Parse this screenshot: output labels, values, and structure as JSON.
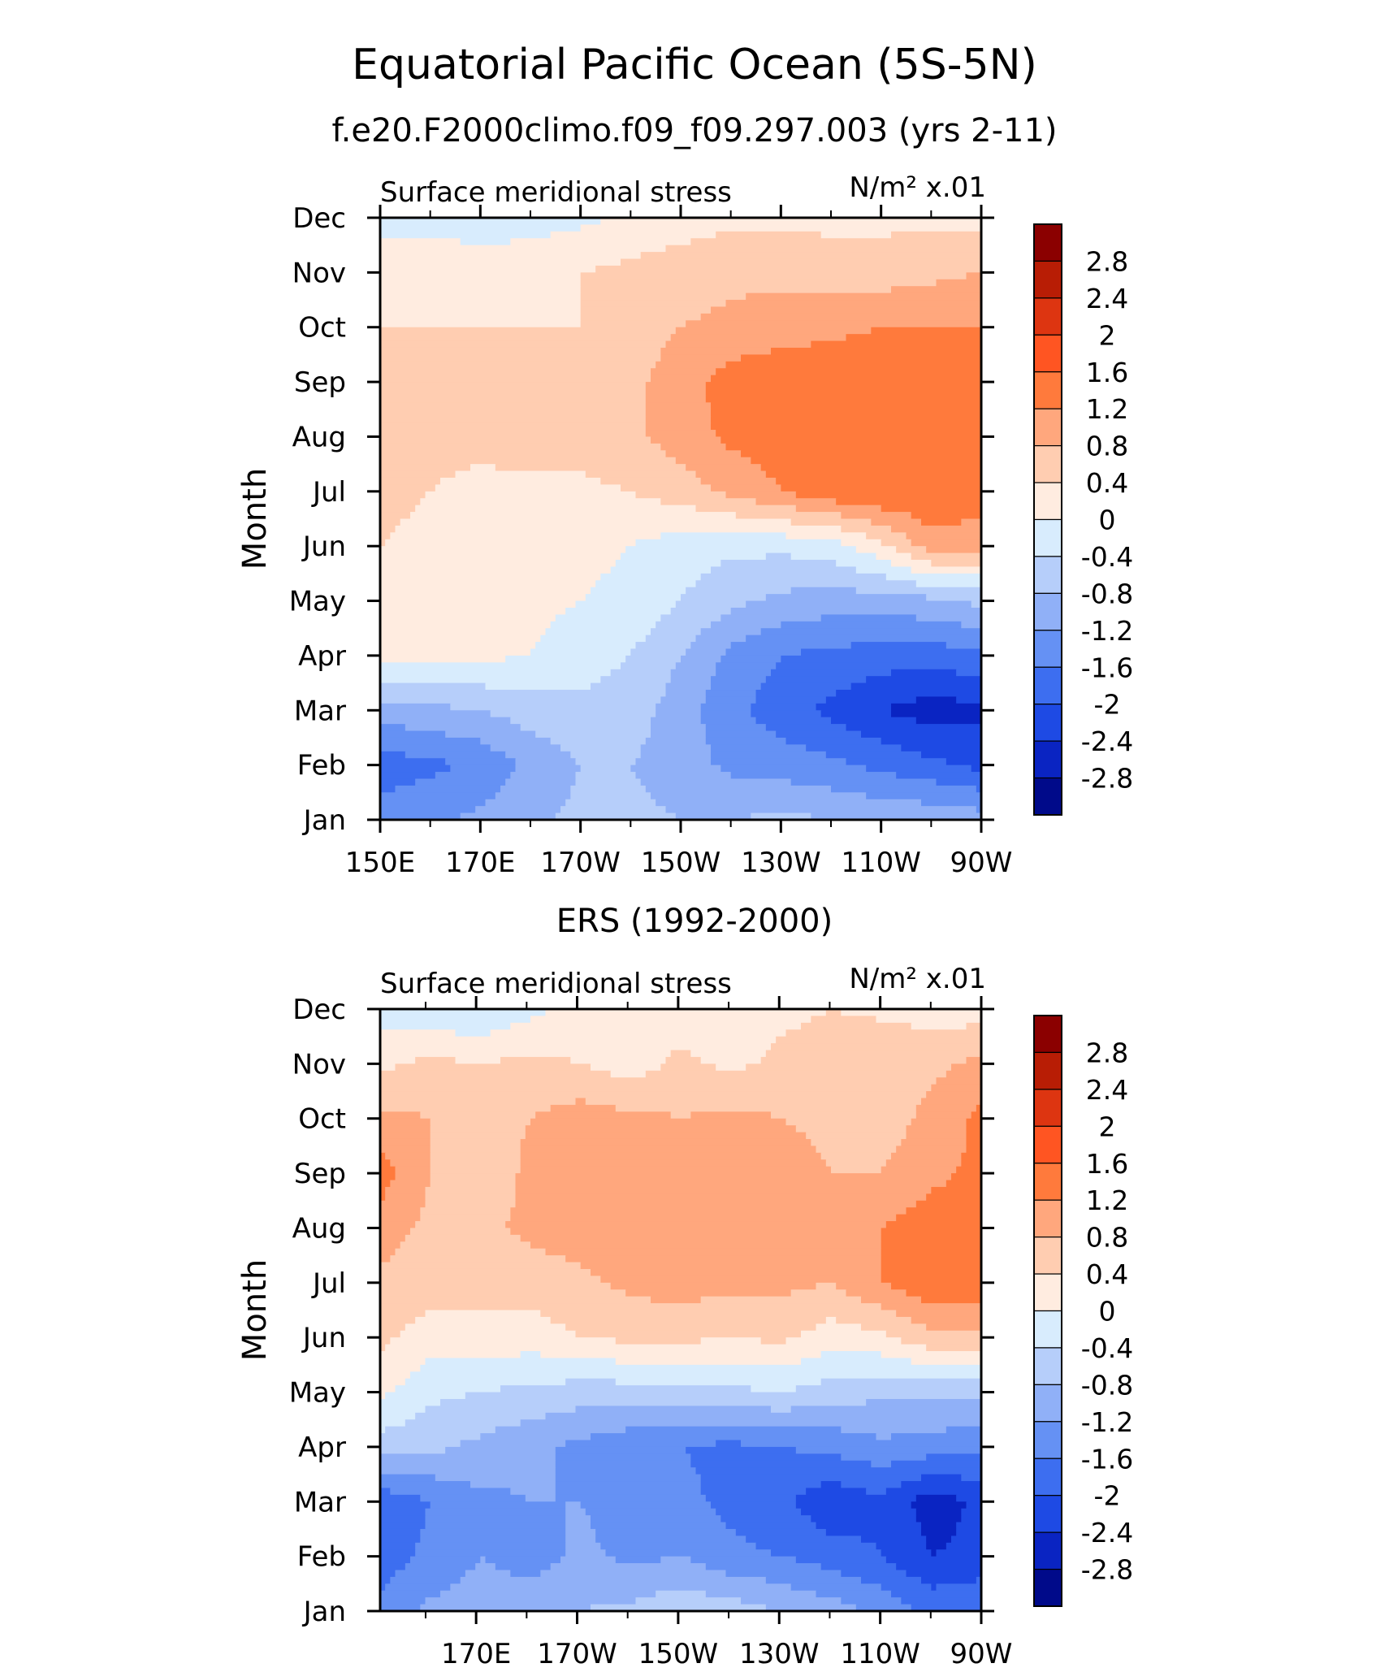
{
  "figure": {
    "title": "Equatorial Pacific Ocean (5S-5N)",
    "colorbar": {
      "labels": [
        "2.8",
        "2.4",
        "2",
        "1.6",
        "1.2",
        "0.8",
        "0.4",
        "0",
        "-0.4",
        "-0.8",
        "-1.2",
        "-1.6",
        "-2",
        "-2.4",
        "-2.8"
      ],
      "colors": [
        "#8b0000",
        "#b81d05",
        "#dd3511",
        "#ff5522",
        "#ff7a3c",
        "#ffa77d",
        "#ffcdb1",
        "#ffece0",
        "#d8ecfd",
        "#b6cefa",
        "#90b0f7",
        "#6591f4",
        "#3d6ef0",
        "#1e4ae4",
        "#0a24c2",
        "#000a8a"
      ]
    }
  },
  "chart_data": [
    {
      "type": "heatmap",
      "subtitle": "f.e20.F2000climo.f09_f09.297.003 (yrs 2-11)",
      "title": "Surface meridional stress",
      "units": "N/m² x.01",
      "ylabel": "Month",
      "xlabel": "",
      "x_ticklabels": [
        "150E",
        "170E",
        "170W",
        "150W",
        "130W",
        "110W",
        "90W"
      ],
      "x_tick_lon": [
        150,
        170,
        190,
        210,
        230,
        250,
        270
      ],
      "xlim": [
        150,
        270
      ],
      "y_ticklabels": [
        "Jan",
        "Feb",
        "Mar",
        "Apr",
        "May",
        "Jun",
        "Jul",
        "Aug",
        "Sep",
        "Oct",
        "Nov",
        "Dec"
      ],
      "ylim": [
        1,
        12
      ],
      "lon": [
        150,
        160,
        170,
        180,
        190,
        200,
        210,
        220,
        230,
        240,
        250,
        260,
        270
      ],
      "values": [
        [
          -1.4,
          -1.3,
          -1.1,
          -0.9,
          -0.7,
          -0.7,
          -0.8,
          -0.8,
          -0.7,
          -0.8,
          -0.9,
          -0.9,
          -1.0
        ],
        [
          -1.8,
          -1.7,
          -1.5,
          -1.1,
          -0.8,
          -0.8,
          -1.0,
          -1.3,
          -1.4,
          -1.5,
          -1.7,
          -1.9,
          -2.1
        ],
        [
          -1.0,
          -0.9,
          -0.8,
          -0.6,
          -0.5,
          -0.6,
          -1.0,
          -1.5,
          -1.8,
          -2.1,
          -2.4,
          -2.6,
          -2.5
        ],
        [
          0.2,
          0.2,
          0.1,
          0.0,
          -0.2,
          -0.4,
          -0.8,
          -1.3,
          -1.6,
          -1.7,
          -1.8,
          -1.8,
          -1.7
        ],
        [
          0.3,
          0.3,
          0.2,
          0.1,
          0.0,
          -0.1,
          -0.4,
          -0.7,
          -0.9,
          -1.0,
          -1.0,
          -0.9,
          -0.7
        ],
        [
          0.4,
          0.3,
          0.3,
          0.2,
          0.1,
          0.0,
          -0.2,
          -0.3,
          -0.3,
          -0.2,
          0.3,
          1.0,
          0.9
        ],
        [
          0.5,
          0.4,
          0.3,
          0.3,
          0.3,
          0.4,
          0.6,
          0.9,
          1.2,
          1.5,
          1.6,
          1.6,
          1.5
        ],
        [
          0.5,
          0.5,
          0.5,
          0.6,
          0.6,
          0.7,
          1.0,
          1.3,
          1.4,
          1.5,
          1.5,
          1.5,
          1.5
        ],
        [
          0.5,
          0.5,
          0.5,
          0.6,
          0.6,
          0.7,
          1.0,
          1.4,
          1.5,
          1.5,
          1.5,
          1.5,
          1.4
        ],
        [
          0.4,
          0.4,
          0.4,
          0.4,
          0.4,
          0.6,
          0.8,
          0.9,
          1.0,
          1.1,
          1.2,
          1.2,
          1.2
        ],
        [
          0.2,
          0.2,
          0.2,
          0.3,
          0.4,
          0.5,
          0.6,
          0.7,
          0.7,
          0.6,
          0.6,
          0.7,
          0.8
        ],
        [
          -0.1,
          -0.1,
          -0.2,
          -0.2,
          -0.1,
          0.1,
          0.2,
          0.3,
          0.3,
          0.3,
          0.3,
          0.3,
          0.3
        ]
      ],
      "colorbar_range": [
        -2.8,
        2.8
      ],
      "contour_interval": 0.4
    },
    {
      "type": "heatmap",
      "subtitle": "ERS (1992-2000)",
      "title": "Surface meridional stress",
      "units": "N/m² x.01",
      "ylabel": "Month",
      "xlabel": "",
      "x_ticklabels": [
        "170E",
        "170W",
        "150W",
        "130W",
        "110W",
        "90W"
      ],
      "x_tick_lon": [
        170,
        190,
        210,
        230,
        250,
        270
      ],
      "xlim": [
        151,
        270
      ],
      "y_ticklabels": [
        "Jan",
        "Feb",
        "Mar",
        "Apr",
        "May",
        "Jun",
        "Jul",
        "Aug",
        "Sep",
        "Oct",
        "Nov",
        "Dec"
      ],
      "ylim": [
        1,
        12
      ],
      "lon": [
        151,
        160,
        170,
        180,
        190,
        200,
        210,
        220,
        230,
        240,
        250,
        260,
        270
      ],
      "values": [
        [
          -1.5,
          -1.1,
          -1.0,
          -0.9,
          -0.8,
          -0.7,
          -0.5,
          -0.6,
          -0.8,
          -1.0,
          -1.3,
          -1.7,
          -1.6
        ],
        [
          -1.8,
          -1.5,
          -1.2,
          -1.4,
          -1.1,
          -1.3,
          -1.2,
          -1.5,
          -1.6,
          -1.8,
          -2.0,
          -2.4,
          -2.3
        ],
        [
          -1.9,
          -1.6,
          -1.3,
          -1.2,
          -1.2,
          -1.4,
          -1.5,
          -1.7,
          -1.9,
          -2.3,
          -2.1,
          -2.6,
          -2.3
        ],
        [
          -0.6,
          -0.7,
          -0.9,
          -1.1,
          -1.3,
          -1.5,
          -1.6,
          -1.7,
          -1.6,
          -1.5,
          -1.3,
          -1.4,
          -1.5
        ],
        [
          0.1,
          -0.3,
          -0.4,
          -0.5,
          -0.6,
          -0.6,
          -0.5,
          -0.5,
          -0.4,
          -0.6,
          -0.7,
          -0.7,
          -0.7
        ],
        [
          0.5,
          0.2,
          0.3,
          0.2,
          0.4,
          0.5,
          0.5,
          0.4,
          0.5,
          0.2,
          0.3,
          0.7,
          0.7
        ],
        [
          0.7,
          0.6,
          0.5,
          0.6,
          0.7,
          0.9,
          1.0,
          0.9,
          0.9,
          0.8,
          1.2,
          1.5,
          1.5
        ],
        [
          1.0,
          0.7,
          0.7,
          0.9,
          1.0,
          1.1,
          1.0,
          1.0,
          1.0,
          0.8,
          1.2,
          1.4,
          1.4
        ],
        [
          1.4,
          0.8,
          0.5,
          0.9,
          1.0,
          1.0,
          0.9,
          1.0,
          1.0,
          0.8,
          0.8,
          1.1,
          1.3
        ],
        [
          0.9,
          0.8,
          0.6,
          0.8,
          1.0,
          0.9,
          0.8,
          0.9,
          0.8,
          0.7,
          0.6,
          0.9,
          1.3
        ],
        [
          0.3,
          0.5,
          0.4,
          0.5,
          0.4,
          0.2,
          0.5,
          0.3,
          0.5,
          0.6,
          0.8,
          0.7,
          0.9
        ],
        [
          -0.2,
          -0.3,
          -0.4,
          -0.1,
          0.1,
          0.1,
          0.2,
          0.1,
          0.3,
          0.4,
          0.3,
          0.2,
          0.2
        ]
      ],
      "colorbar_range": [
        -2.8,
        2.8
      ],
      "contour_interval": 0.4
    }
  ]
}
